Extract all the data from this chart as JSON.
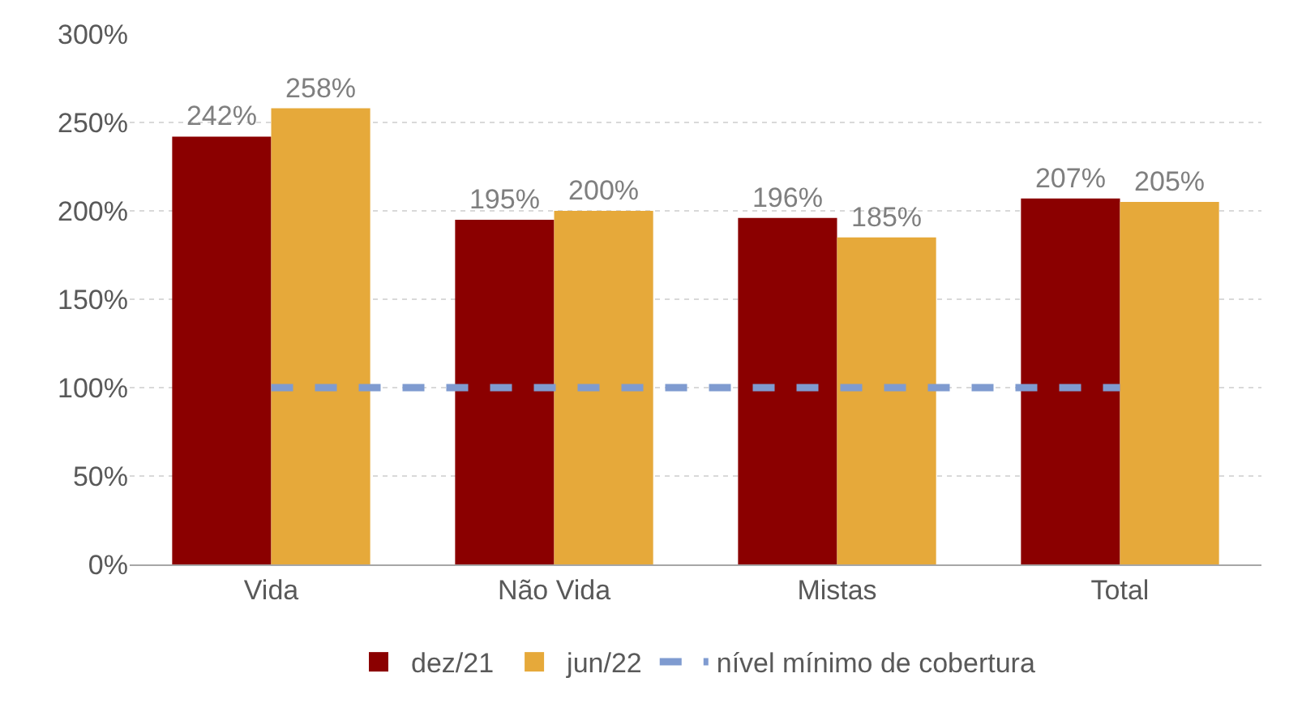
{
  "chart_data": {
    "type": "bar",
    "categories": [
      "Vida",
      "Não Vida",
      "Mistas",
      "Total"
    ],
    "series": [
      {
        "name": "dez/21",
        "color": "#8b0000",
        "values": [
          242,
          195,
          196,
          207
        ],
        "value_labels": [
          "242%",
          "195%",
          "196%",
          "207%"
        ]
      },
      {
        "name": "jun/22",
        "color": "#e6a93a",
        "values": [
          258,
          200,
          185,
          205
        ],
        "value_labels": [
          "258%",
          "200%",
          "185%",
          "205%"
        ]
      },
      {
        "name": "nível mínimo de cobertura",
        "type": "line",
        "color": "#7f9bd0",
        "line_style": "dashed",
        "marker": "none",
        "values": [
          100,
          100,
          100,
          100
        ]
      }
    ],
    "ylim": [
      0,
      300
    ],
    "yticks": [
      {
        "value": 0,
        "label": "0%"
      },
      {
        "value": 50,
        "label": "50%"
      },
      {
        "value": 100,
        "label": "100%"
      },
      {
        "value": 150,
        "label": "150%"
      },
      {
        "value": 200,
        "label": "200%"
      },
      {
        "value": 250,
        "label": "250%"
      },
      {
        "value": 300,
        "label": "300%"
      }
    ],
    "grid": "y",
    "legend": "bottom"
  }
}
